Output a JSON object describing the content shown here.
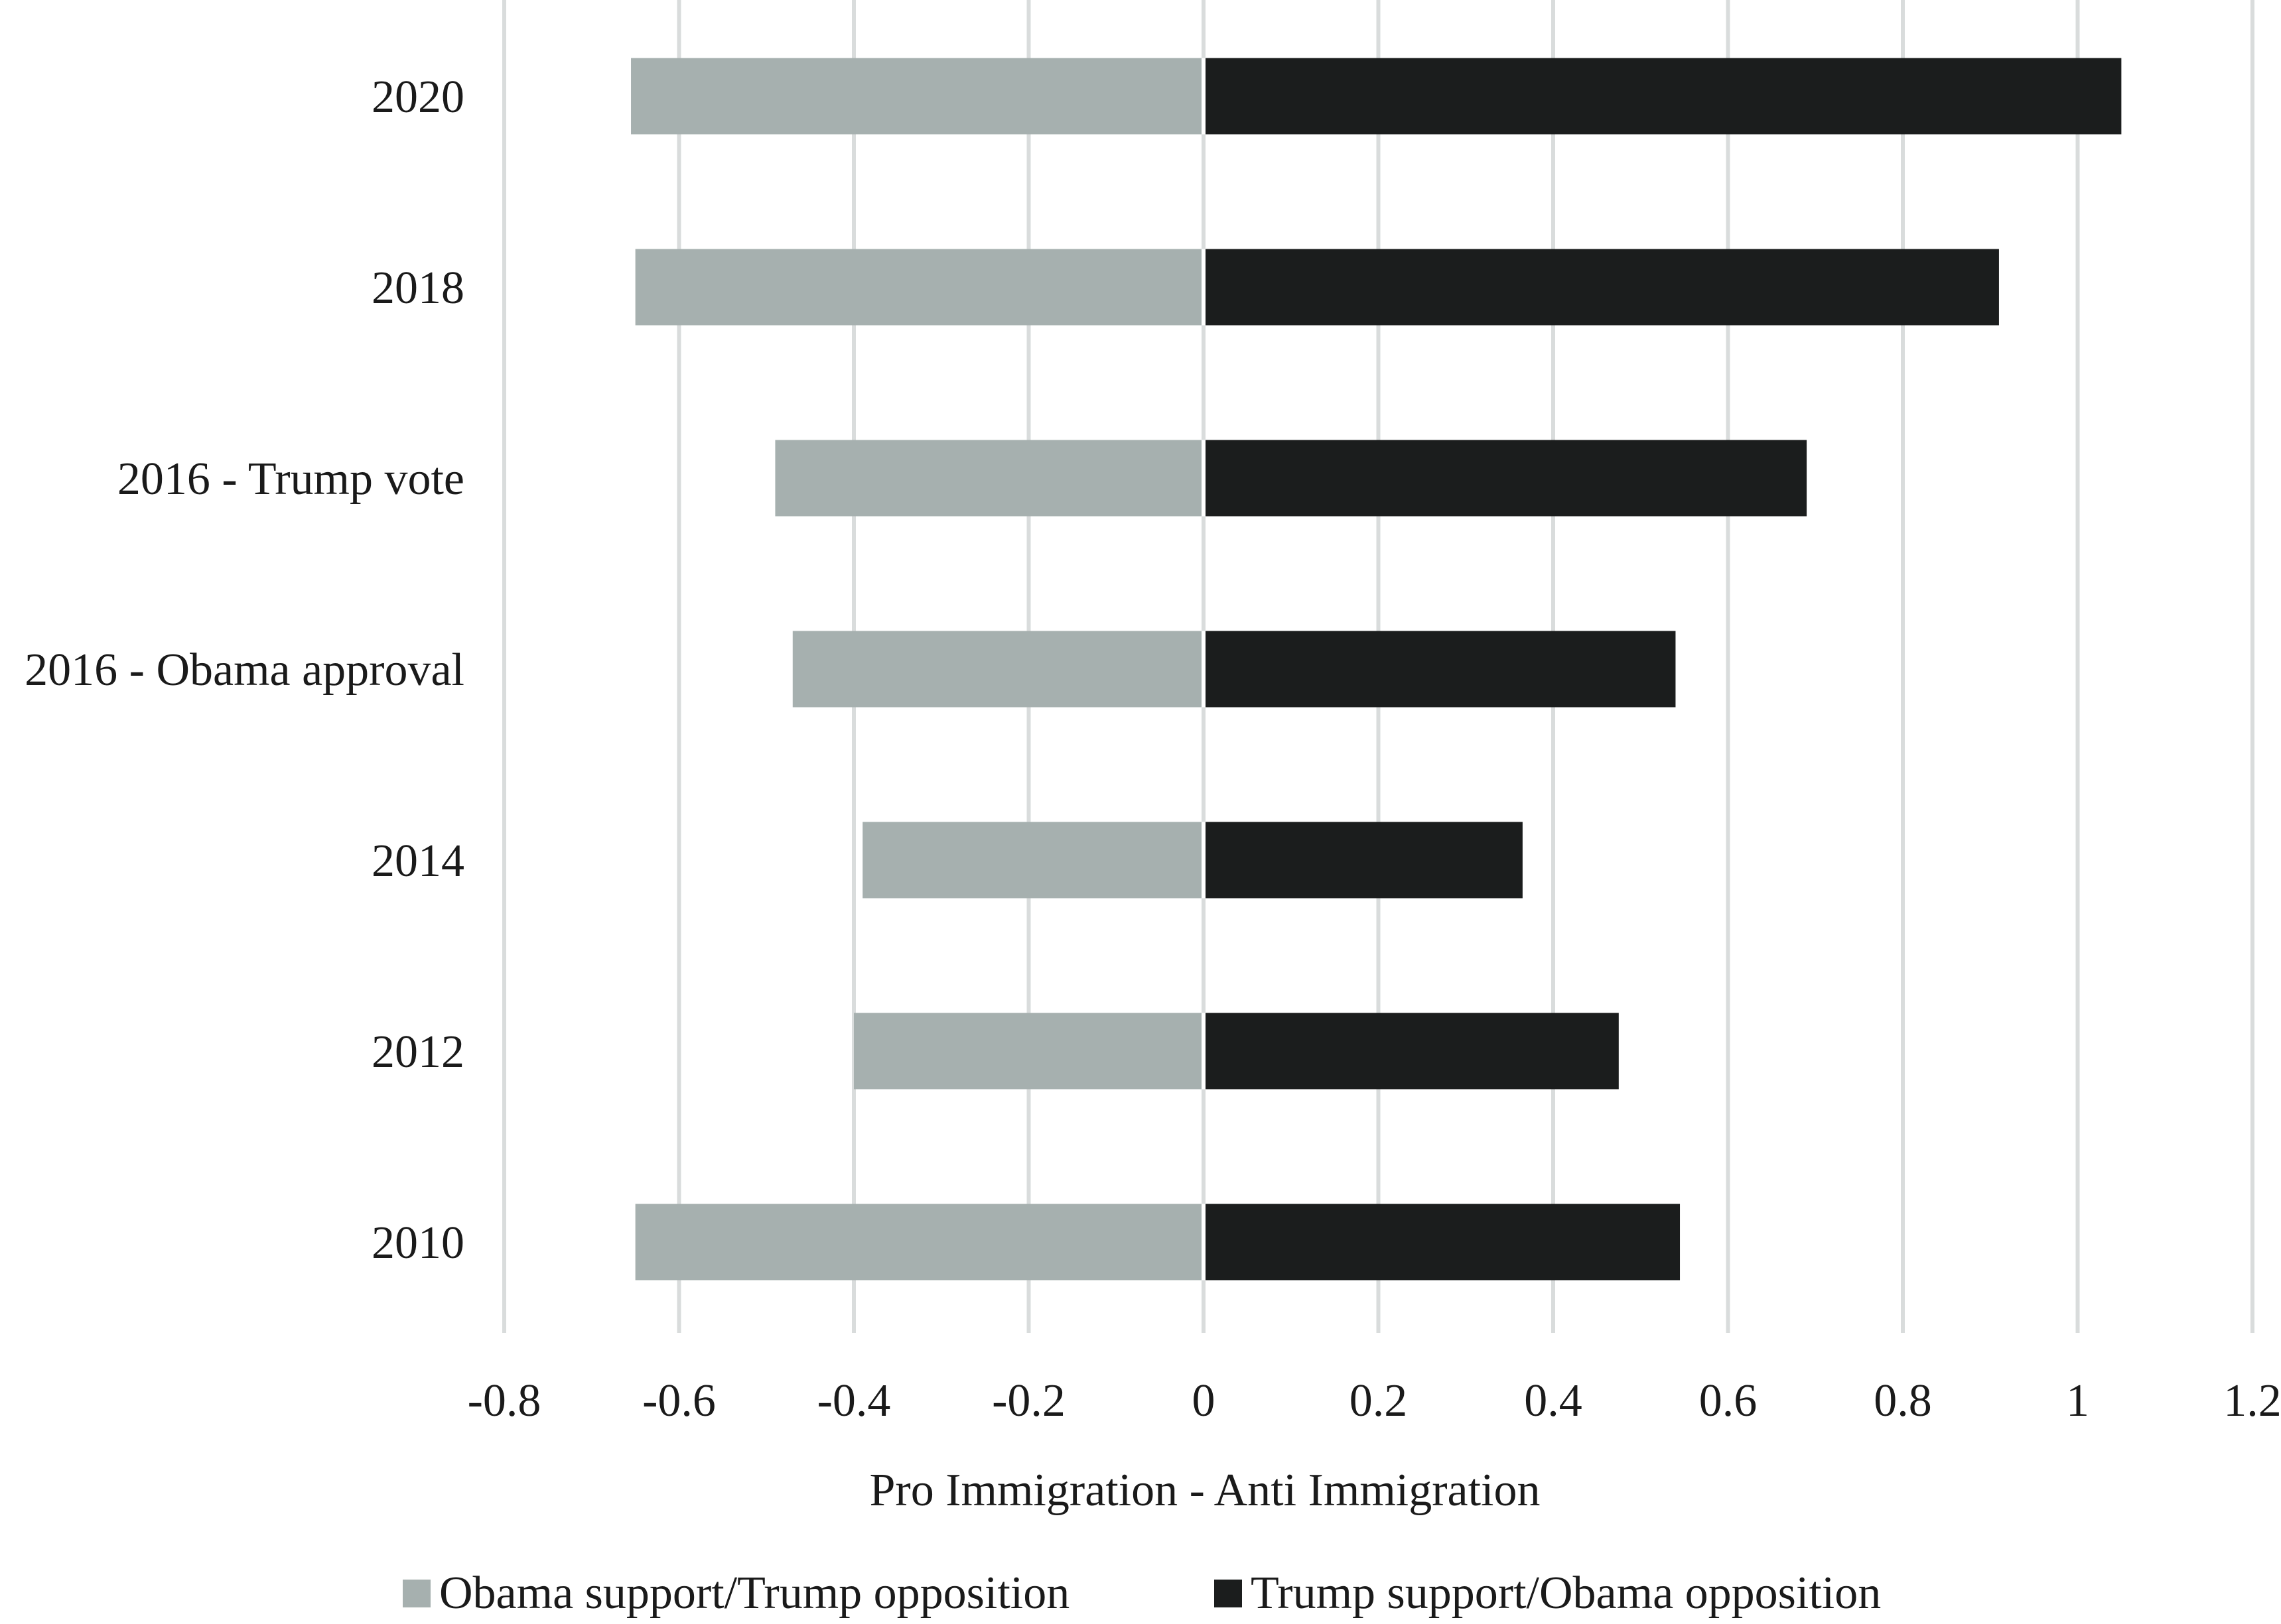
{
  "chart_data": {
    "type": "bar",
    "orientation": "horizontal",
    "stacked": true,
    "categories": [
      "2020",
      "2018",
      "2016 - Trump vote",
      "2016 - Obama approval",
      "2014",
      "2012",
      "2010"
    ],
    "series": [
      {
        "name": "Obama support/Trump opposition",
        "color": "#a6b0af",
        "values": [
          -0.655,
          -0.65,
          -0.49,
          -0.47,
          -0.39,
          -0.4,
          -0.65
        ]
      },
      {
        "name": "Trump support/Obama opposition",
        "color": "#1b1d1d",
        "values": [
          1.05,
          0.91,
          0.69,
          0.54,
          0.365,
          0.475,
          0.545
        ]
      }
    ],
    "xlabel": "Pro Immigration - Anti Immigration",
    "ylabel": "",
    "xlim": [
      -0.8,
      1.2
    ],
    "xticks": [
      -0.8,
      -0.6,
      -0.4,
      -0.2,
      0,
      0.2,
      0.4,
      0.6,
      0.8,
      1,
      1.2
    ],
    "xtick_labels": [
      "-0.8",
      "-0.6",
      "-0.4",
      "-0.2",
      "0",
      "0.2",
      "0.4",
      "0.6",
      "0.8",
      "1",
      "1.2"
    ],
    "grid": "vertical",
    "legend_position": "bottom"
  }
}
